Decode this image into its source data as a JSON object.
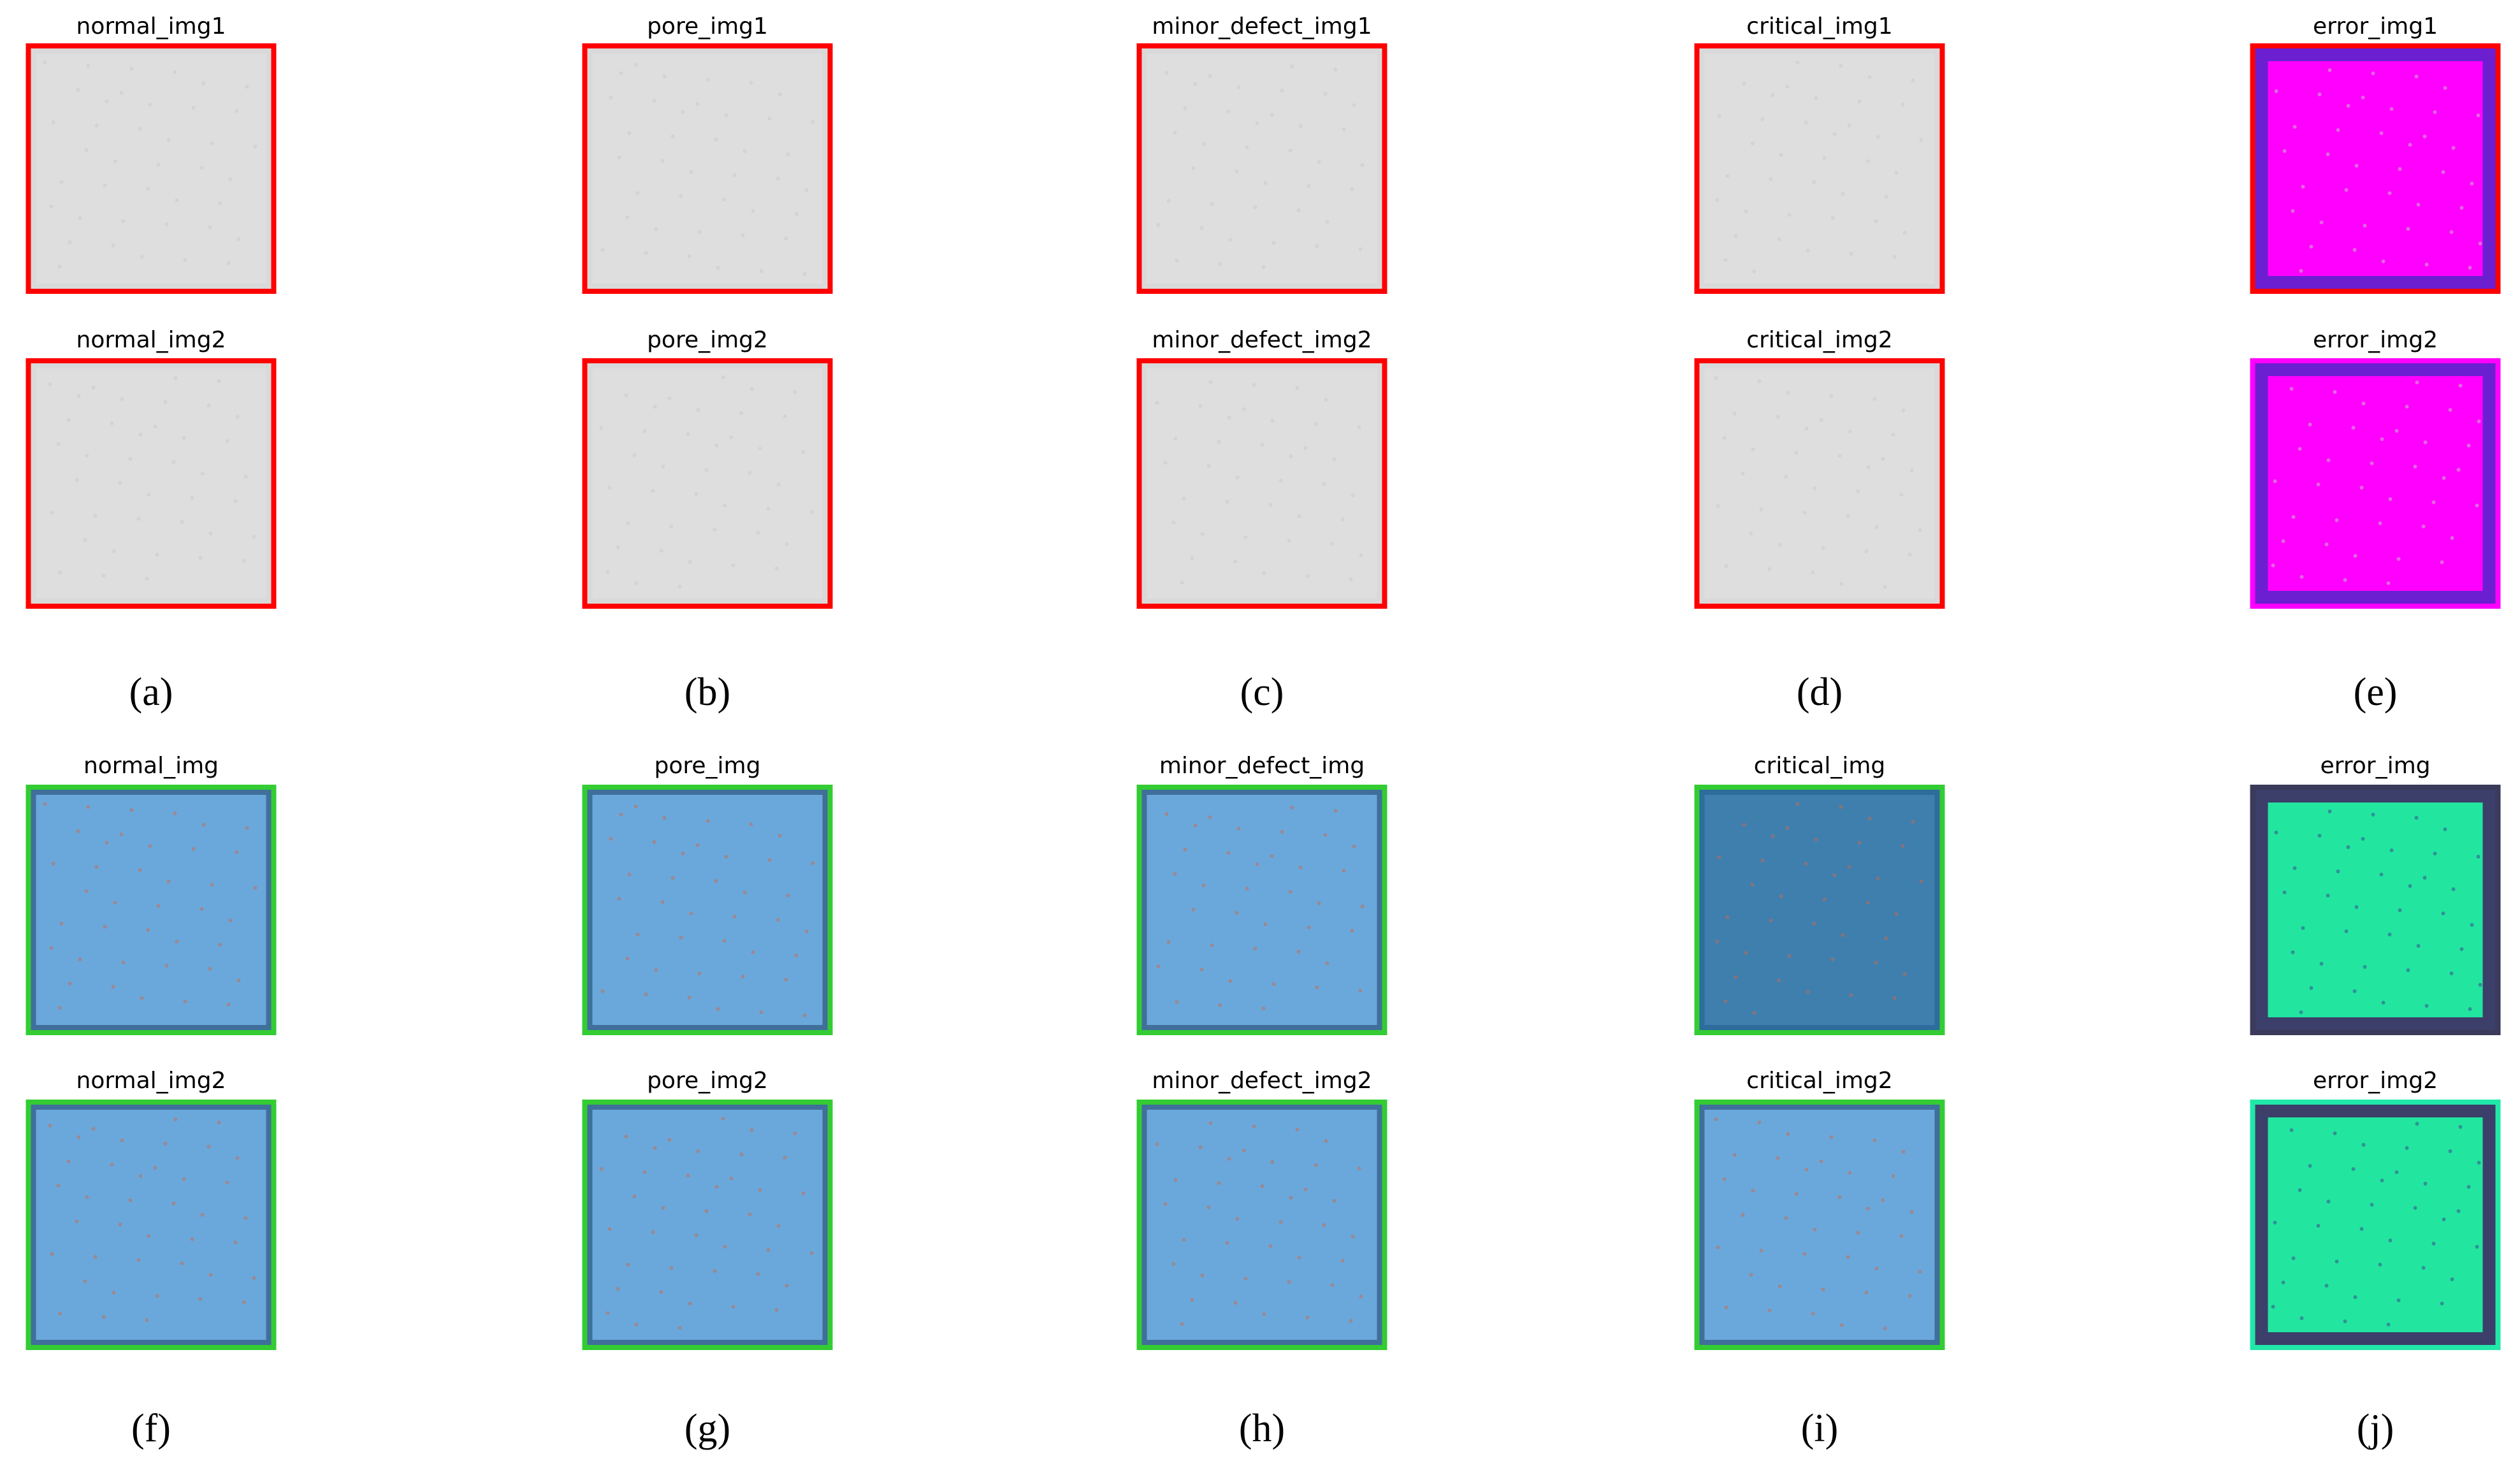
{
  "panels": [
    {
      "label": "(a)",
      "images": [
        {
          "title": "normal_img1"
        },
        {
          "title": "normal_img2"
        }
      ]
    },
    {
      "label": "(b)",
      "images": [
        {
          "title": "pore_img1"
        },
        {
          "title": "pore_img2"
        }
      ]
    },
    {
      "label": "(c)",
      "images": [
        {
          "title": "minor_defect_img1"
        },
        {
          "title": "minor_defect_img2"
        }
      ]
    },
    {
      "label": "(d)",
      "images": [
        {
          "title": "critical_img1"
        },
        {
          "title": "critical_img2"
        }
      ]
    },
    {
      "label": "(e)",
      "images": [
        {
          "title": "error_img1"
        },
        {
          "title": "error_img2"
        }
      ]
    },
    {
      "label": "(f)",
      "images": [
        {
          "title": "normal_img"
        },
        {
          "title": "normal_img2"
        }
      ]
    },
    {
      "label": "(g)",
      "images": [
        {
          "title": "pore_img"
        },
        {
          "title": "pore_img2"
        }
      ]
    },
    {
      "label": "(h)",
      "images": [
        {
          "title": "minor_defect_img"
        },
        {
          "title": "minor_defect_img2"
        }
      ]
    },
    {
      "label": "(i)",
      "images": [
        {
          "title": "critical_img"
        },
        {
          "title": "critical_img2"
        }
      ]
    },
    {
      "label": "(j)",
      "images": [
        {
          "title": "error_img"
        },
        {
          "title": "error_img2"
        }
      ]
    }
  ]
}
